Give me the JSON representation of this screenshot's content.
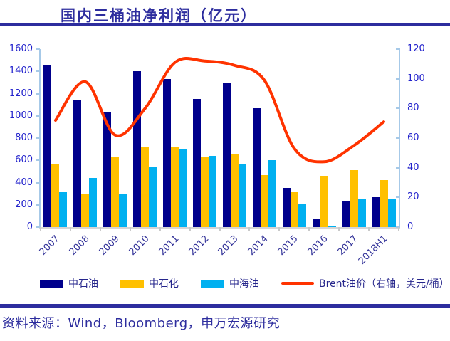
{
  "footer": {
    "source_label": "资料来源：Wind，Bloomberg，申万宏源研究"
  },
  "colors": {
    "accent_navy": "#2D2D9E",
    "axis_label_blue": "#2222CC",
    "x_label_blue": "#333399",
    "axis_line_blue": "#A6C9E8",
    "axis_line_gray": "#D6D6D6"
  },
  "chart_data": {
    "type": "bar",
    "title": "国内三桶油净利润（亿元）",
    "categories": [
      "2007",
      "2008",
      "2009",
      "2010",
      "2011",
      "2012",
      "2013",
      "2014",
      "2015",
      "2016",
      "2017",
      "2018H1"
    ],
    "series": [
      {
        "name": "中石油",
        "type": "bar",
        "axis": "left",
        "color": "#00008C",
        "values": [
          1456,
          1144,
          1033,
          1399,
          1330,
          1153,
          1296,
          1072,
          355,
          79,
          228,
          271
        ]
      },
      {
        "name": "中石化",
        "type": "bar",
        "axis": "left",
        "color": "#FFC000",
        "values": [
          565,
          297,
          627,
          718,
          717,
          635,
          660,
          465,
          322,
          464,
          511,
          424
        ]
      },
      {
        "name": "中海油",
        "type": "bar",
        "axis": "left",
        "color": "#00B0F0",
        "values": [
          312,
          443,
          294,
          544,
          702,
          637,
          565,
          602,
          202,
          6,
          247,
          255
        ]
      },
      {
        "name": "Brent油价（右轴，美元/桶）",
        "type": "line",
        "axis": "right",
        "color": "#FF3300",
        "values": [
          72,
          98,
          62,
          80,
          111,
          112,
          109,
          99,
          53,
          44,
          55,
          71
        ]
      }
    ],
    "left_axis": {
      "ticks": [
        0,
        200,
        400,
        600,
        800,
        1000,
        1200,
        1400,
        1600
      ],
      "max": 1600
    },
    "right_axis": {
      "ticks": [
        0,
        20,
        40,
        60,
        80,
        100,
        120
      ],
      "max": 120
    },
    "xlabel": "",
    "ylabel_left": "",
    "ylabel_right": "",
    "grid": false,
    "legend_position": "bottom",
    "line_smoothing": true
  }
}
